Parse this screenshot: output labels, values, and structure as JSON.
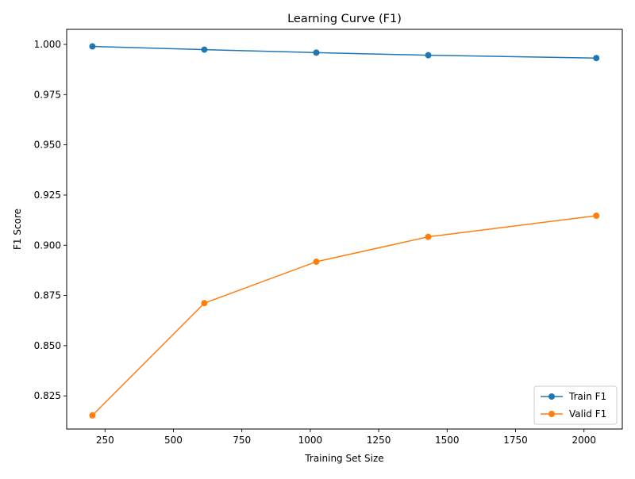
{
  "chart_data": {
    "type": "line",
    "title": "Learning Curve (F1)",
    "xlabel": "Training Set Size",
    "ylabel": "F1 Score",
    "xlim": [
      110,
      2140
    ],
    "ylim": [
      0.8085,
      1.0075
    ],
    "xticks": [
      250,
      500,
      750,
      1000,
      1250,
      1500,
      1750,
      2000
    ],
    "xtick_labels": [
      "250",
      "500",
      "750",
      "1000",
      "1250",
      "1500",
      "1750",
      "2000"
    ],
    "yticks": [
      0.825,
      0.85,
      0.875,
      0.9,
      0.925,
      0.95,
      0.975,
      1.0
    ],
    "ytick_labels": [
      "0.825",
      "0.850",
      "0.875",
      "0.900",
      "0.925",
      "0.950",
      "0.975",
      "1.000"
    ],
    "grid": false,
    "legend_position": "bottom-right",
    "x": [
      204,
      613,
      1022,
      1431,
      2045
    ],
    "series": [
      {
        "name": "Train F1",
        "color": "#1f77b4",
        "marker": "circle",
        "values": [
          0.999,
          0.9974,
          0.9959,
          0.9946,
          0.9932
        ]
      },
      {
        "name": "Valid F1",
        "color": "#ff7f0e",
        "marker": "circle",
        "values": [
          0.8153,
          0.8712,
          0.8918,
          0.9042,
          0.9147
        ]
      }
    ]
  }
}
